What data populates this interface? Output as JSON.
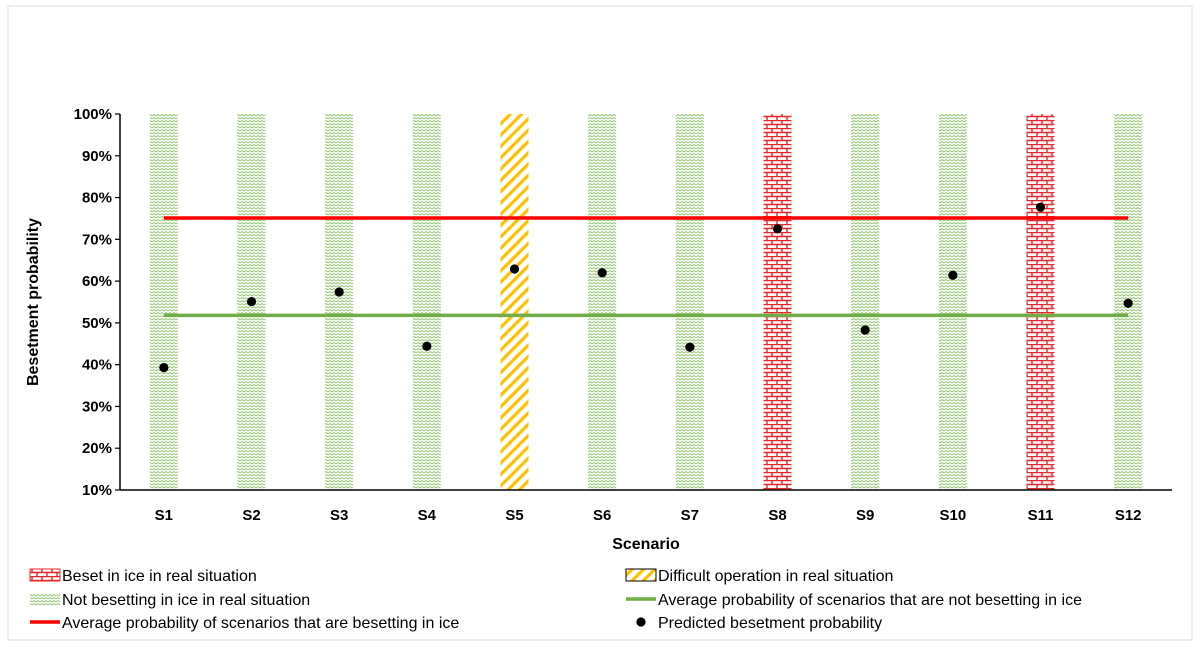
{
  "chart_data": {
    "type": "scatter",
    "title": "",
    "xlabel": "Scenario",
    "ylabel": "Besetment probability",
    "ylim": [
      10,
      100
    ],
    "yticks": [
      10,
      20,
      30,
      40,
      50,
      60,
      70,
      80,
      90,
      100
    ],
    "ytick_labels": [
      "10%",
      "20%",
      "30%",
      "40%",
      "50%",
      "60%",
      "70%",
      "80%",
      "90%",
      "100%"
    ],
    "categories": [
      "S1",
      "S2",
      "S3",
      "S4",
      "S5",
      "S6",
      "S7",
      "S8",
      "S9",
      "S10",
      "S11",
      "S12"
    ],
    "bar_status": [
      "not",
      "not",
      "not",
      "not",
      "difficult",
      "not",
      "not",
      "beset",
      "not",
      "not",
      "beset",
      "not"
    ],
    "predicted": [
      39.3,
      55.1,
      57.4,
      44.4,
      62.9,
      62.0,
      44.2,
      72.5,
      48.3,
      61.4,
      77.7,
      54.7
    ],
    "avg_beset": 75.1,
    "avg_not_beset": 51.8,
    "grid": false,
    "legend_position": "bottom",
    "colors": {
      "beset": "#e8262a",
      "difficult": "#ffc000",
      "not": "#70ad47",
      "avg_beset": "#ff0000",
      "avg_not": "#70ad47",
      "point": "#000000"
    },
    "legend": [
      {
        "key": "beset",
        "label": "Beset in ice in real situation"
      },
      {
        "key": "difficult",
        "label": "Difficult operation in real situation"
      },
      {
        "key": "not",
        "label": "Not besetting in ice in real situation"
      },
      {
        "key": "avg_not",
        "label": "Average probability of scenarios that are not besetting in ice"
      },
      {
        "key": "avg_beset",
        "label": "Average probability of scenarios that are besetting in ice"
      },
      {
        "key": "point",
        "label": "Predicted besetment probability"
      }
    ]
  }
}
